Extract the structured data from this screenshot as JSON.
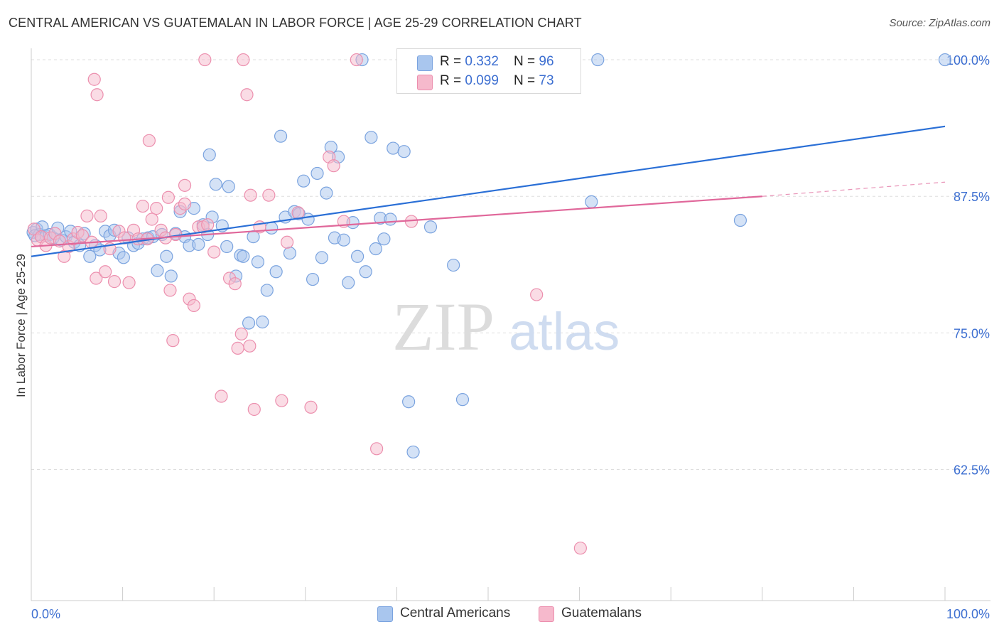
{
  "title": "CENTRAL AMERICAN VS GUATEMALAN IN LABOR FORCE | AGE 25-29 CORRELATION CHART",
  "source": "Source: ZipAtlas.com",
  "watermark": {
    "zip": "ZIP",
    "atlas": "atlas"
  },
  "colors": {
    "blue_fill": "#a9c6ee",
    "blue_stroke": "#7aa3df",
    "blue_line": "#2a6fd6",
    "pink_fill": "#f6b9cc",
    "pink_stroke": "#ec8fae",
    "pink_line": "#e0679a",
    "tick_label": "#3d6fd1",
    "grid": "#dddddd"
  },
  "legend": {
    "rows": [
      {
        "r_label": "R = ",
        "r_value": "0.332",
        "n_label": "N = ",
        "n_value": "96",
        "color": "blue"
      },
      {
        "r_label": "R = ",
        "r_value": "0.099",
        "n_label": "N = ",
        "n_value": "73",
        "color": "pink"
      }
    ]
  },
  "bottom_legend": [
    "Central Americans",
    "Guatemalans"
  ],
  "chart_data": {
    "type": "scatter",
    "title": "CENTRAL AMERICAN VS GUATEMALAN IN LABOR FORCE | AGE 25-29 CORRELATION CHART",
    "xlabel": "",
    "ylabel": "In Labor Force | Age 25-29",
    "xlim": [
      0,
      100
    ],
    "ylim": [
      50.5,
      101.5
    ],
    "x_tick_labels": [
      "0.0%",
      "100.0%"
    ],
    "y_ticks": [
      62.5,
      75.0,
      87.5,
      100.0
    ],
    "y_tick_labels": [
      "62.5%",
      "75.0%",
      "87.5%",
      "100.0%"
    ],
    "grid": true,
    "legend_position": "top-center",
    "series": [
      {
        "name": "Central Americans",
        "color": "blue",
        "trend": {
          "x": [
            0,
            100
          ],
          "y": [
            82.0,
            93.9
          ],
          "dashed_from": null
        },
        "points": [
          [
            0.2,
            84.2
          ],
          [
            0.6,
            84.5
          ],
          [
            0.9,
            84.0
          ],
          [
            1.2,
            84.7
          ],
          [
            1.6,
            83.9
          ],
          [
            2.0,
            84.0
          ],
          [
            2.4,
            83.7
          ],
          [
            2.9,
            84.6
          ],
          [
            3.3,
            83.5
          ],
          [
            3.8,
            83.8
          ],
          [
            4.3,
            84.3
          ],
          [
            4.7,
            83.3
          ],
          [
            5.3,
            83.0
          ],
          [
            5.8,
            84.1
          ],
          [
            6.4,
            82.0
          ],
          [
            7.0,
            83.0
          ],
          [
            7.5,
            82.6
          ],
          [
            8.1,
            84.3
          ],
          [
            8.6,
            83.9
          ],
          [
            9.1,
            84.4
          ],
          [
            9.6,
            82.3
          ],
          [
            10.1,
            81.9
          ],
          [
            10.6,
            83.7
          ],
          [
            11.2,
            83.0
          ],
          [
            11.7,
            83.2
          ],
          [
            12.2,
            83.6
          ],
          [
            12.8,
            83.7
          ],
          [
            13.3,
            83.8
          ],
          [
            13.8,
            80.7
          ],
          [
            14.3,
            84.0
          ],
          [
            14.8,
            82.0
          ],
          [
            15.3,
            80.2
          ],
          [
            15.8,
            84.1
          ],
          [
            16.3,
            86.1
          ],
          [
            16.8,
            83.8
          ],
          [
            17.3,
            83.0
          ],
          [
            17.8,
            86.4
          ],
          [
            18.3,
            83.1
          ],
          [
            18.8,
            84.9
          ],
          [
            19.3,
            84.0
          ],
          [
            19.5,
            91.3
          ],
          [
            19.8,
            85.6
          ],
          [
            20.2,
            88.6
          ],
          [
            20.9,
            84.8
          ],
          [
            21.4,
            82.9
          ],
          [
            21.6,
            88.4
          ],
          [
            22.4,
            80.2
          ],
          [
            22.9,
            82.1
          ],
          [
            23.2,
            82.0
          ],
          [
            23.8,
            75.9
          ],
          [
            24.3,
            83.8
          ],
          [
            24.8,
            81.5
          ],
          [
            25.3,
            76.0
          ],
          [
            25.8,
            78.9
          ],
          [
            26.3,
            84.6
          ],
          [
            26.8,
            80.6
          ],
          [
            27.3,
            93.0
          ],
          [
            27.8,
            85.6
          ],
          [
            28.3,
            82.3
          ],
          [
            28.8,
            86.1
          ],
          [
            29.3,
            85.9
          ],
          [
            29.8,
            88.9
          ],
          [
            30.3,
            85.4
          ],
          [
            30.8,
            79.9
          ],
          [
            31.3,
            89.6
          ],
          [
            31.8,
            81.9
          ],
          [
            32.3,
            87.8
          ],
          [
            32.8,
            92.0
          ],
          [
            33.2,
            83.7
          ],
          [
            33.6,
            91.1
          ],
          [
            34.2,
            83.5
          ],
          [
            34.7,
            79.6
          ],
          [
            35.2,
            85.1
          ],
          [
            35.7,
            82.0
          ],
          [
            36.2,
            100.0
          ],
          [
            36.6,
            80.6
          ],
          [
            37.2,
            92.9
          ],
          [
            37.7,
            82.7
          ],
          [
            38.2,
            85.5
          ],
          [
            38.6,
            83.6
          ],
          [
            39.3,
            85.4
          ],
          [
            39.6,
            91.9
          ],
          [
            40.8,
            91.6
          ],
          [
            41.3,
            68.7
          ],
          [
            41.8,
            64.1
          ],
          [
            43.7,
            84.7
          ],
          [
            44.2,
            100.0
          ],
          [
            46.2,
            81.2
          ],
          [
            47.2,
            68.9
          ],
          [
            48.5,
            100.0
          ],
          [
            56.0,
            100.0
          ],
          [
            61.3,
            87.0
          ],
          [
            62.0,
            100.0
          ],
          [
            77.6,
            85.3
          ],
          [
            100.0,
            100.0
          ],
          [
            0.4,
            83.9
          ]
        ]
      },
      {
        "name": "Guatemalans",
        "color": "pink",
        "trend": {
          "x": [
            0,
            80,
            100
          ],
          "y": [
            82.9,
            87.5,
            88.8
          ],
          "dashed_from": 80
        },
        "points": [
          [
            0.3,
            84.5
          ],
          [
            0.7,
            83.5
          ],
          [
            1.1,
            83.8
          ],
          [
            1.6,
            83.0
          ],
          [
            2.1,
            83.7
          ],
          [
            2.6,
            84.1
          ],
          [
            3.1,
            83.4
          ],
          [
            3.6,
            82.0
          ],
          [
            4.1,
            82.9
          ],
          [
            4.6,
            83.6
          ],
          [
            5.1,
            84.2
          ],
          [
            5.6,
            83.9
          ],
          [
            6.1,
            85.7
          ],
          [
            6.6,
            83.3
          ],
          [
            7.1,
            80.0
          ],
          [
            7.6,
            85.7
          ],
          [
            8.1,
            80.6
          ],
          [
            8.6,
            82.7
          ],
          [
            9.1,
            79.7
          ],
          [
            9.6,
            84.3
          ],
          [
            10.2,
            83.7
          ],
          [
            10.7,
            79.6
          ],
          [
            11.2,
            84.4
          ],
          [
            11.7,
            83.6
          ],
          [
            12.2,
            86.6
          ],
          [
            12.7,
            83.6
          ],
          [
            13.2,
            85.4
          ],
          [
            13.7,
            86.4
          ],
          [
            14.2,
            84.4
          ],
          [
            14.7,
            83.7
          ],
          [
            15.2,
            78.9
          ],
          [
            15.5,
            74.3
          ],
          [
            15.8,
            84.0
          ],
          [
            16.3,
            86.4
          ],
          [
            16.8,
            86.8
          ],
          [
            17.3,
            78.1
          ],
          [
            17.8,
            77.5
          ],
          [
            18.3,
            84.7
          ],
          [
            18.8,
            84.7
          ],
          [
            19.3,
            84.9
          ],
          [
            20.0,
            82.4
          ],
          [
            20.8,
            69.2
          ],
          [
            21.7,
            80.0
          ],
          [
            22.3,
            79.5
          ],
          [
            22.6,
            73.6
          ],
          [
            23.0,
            74.9
          ],
          [
            23.6,
            96.8
          ],
          [
            23.9,
            73.8
          ],
          [
            24.4,
            68.0
          ],
          [
            25.0,
            84.7
          ],
          [
            26.0,
            87.6
          ],
          [
            27.4,
            68.8
          ],
          [
            28.0,
            83.3
          ],
          [
            29.2,
            86.0
          ],
          [
            30.6,
            68.2
          ],
          [
            32.6,
            91.1
          ],
          [
            33.1,
            90.3
          ],
          [
            34.2,
            85.2
          ],
          [
            35.6,
            100.0
          ],
          [
            37.8,
            64.4
          ],
          [
            41.6,
            85.2
          ],
          [
            48.9,
            100.0
          ],
          [
            55.3,
            78.5
          ],
          [
            56.5,
            100.0
          ],
          [
            60.1,
            55.3
          ],
          [
            6.9,
            98.2
          ],
          [
            7.2,
            96.8
          ],
          [
            12.9,
            92.6
          ],
          [
            16.8,
            88.5
          ],
          [
            15.0,
            87.4
          ],
          [
            24.0,
            87.6
          ],
          [
            19.0,
            100.0
          ],
          [
            23.2,
            100.0
          ]
        ]
      }
    ]
  }
}
